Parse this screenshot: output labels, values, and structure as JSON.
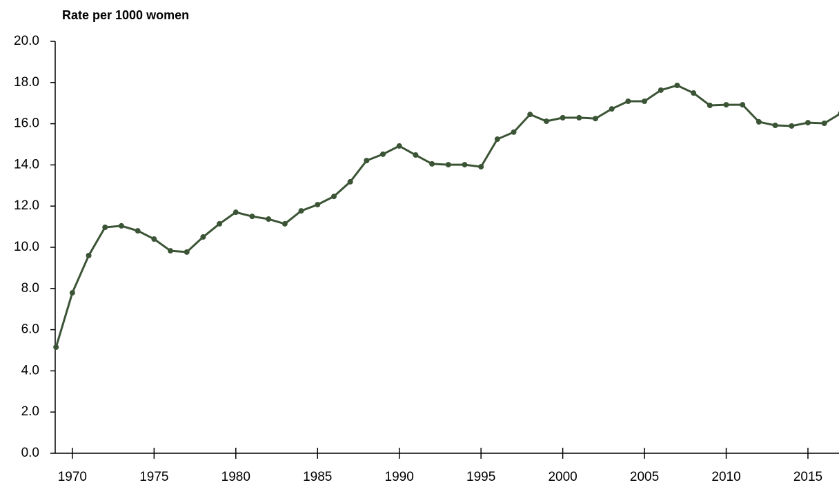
{
  "chart_data": {
    "type": "line",
    "y_axis_label": "Rate per 1000 women",
    "x": [
      1969,
      1970,
      1971,
      1972,
      1973,
      1974,
      1975,
      1976,
      1977,
      1978,
      1979,
      1980,
      1981,
      1982,
      1983,
      1984,
      1985,
      1986,
      1987,
      1988,
      1989,
      1990,
      1991,
      1992,
      1993,
      1994,
      1995,
      1996,
      1997,
      1998,
      1999,
      2000,
      2001,
      2002,
      2003,
      2004,
      2005,
      2006,
      2007,
      2008,
      2009,
      2010,
      2011,
      2012,
      2013,
      2014,
      2015,
      2016,
      2017
    ],
    "series": [
      {
        "color": "#3b5435",
        "values": [
          5.15,
          7.79,
          9.6,
          10.97,
          11.04,
          10.8,
          10.4,
          9.83,
          9.77,
          10.5,
          11.14,
          11.7,
          11.5,
          11.37,
          11.14,
          11.77,
          12.07,
          12.47,
          13.18,
          14.21,
          14.52,
          14.92,
          14.48,
          14.05,
          14.01,
          14.01,
          13.91,
          15.25,
          15.59,
          16.45,
          16.12,
          16.29,
          16.29,
          16.25,
          16.72,
          17.09,
          17.09,
          17.63,
          17.86,
          17.49,
          16.89,
          16.92,
          16.92,
          16.09,
          15.92,
          15.89,
          16.05,
          16.02,
          16.5
        ]
      }
    ],
    "xlim": [
      1968.95,
      2016.9
    ],
    "xticks": [
      1970,
      1975,
      1980,
      1985,
      1990,
      1995,
      2000,
      2005,
      2010,
      2015
    ],
    "ylim": [
      0,
      20
    ],
    "yticks": [
      {
        "value": 0,
        "label": "0.0"
      },
      {
        "value": 2,
        "label": "2.0"
      },
      {
        "value": 4,
        "label": "4.0"
      },
      {
        "value": 6,
        "label": "6.0"
      },
      {
        "value": 8,
        "label": "8.0"
      },
      {
        "value": 10,
        "label": "10.0"
      },
      {
        "value": 12,
        "label": "12.0"
      },
      {
        "value": 14,
        "label": "14.0"
      },
      {
        "value": 16,
        "label": "16.0"
      },
      {
        "value": 18,
        "label": "18.0"
      },
      {
        "value": 20,
        "label": "20.0"
      }
    ]
  }
}
